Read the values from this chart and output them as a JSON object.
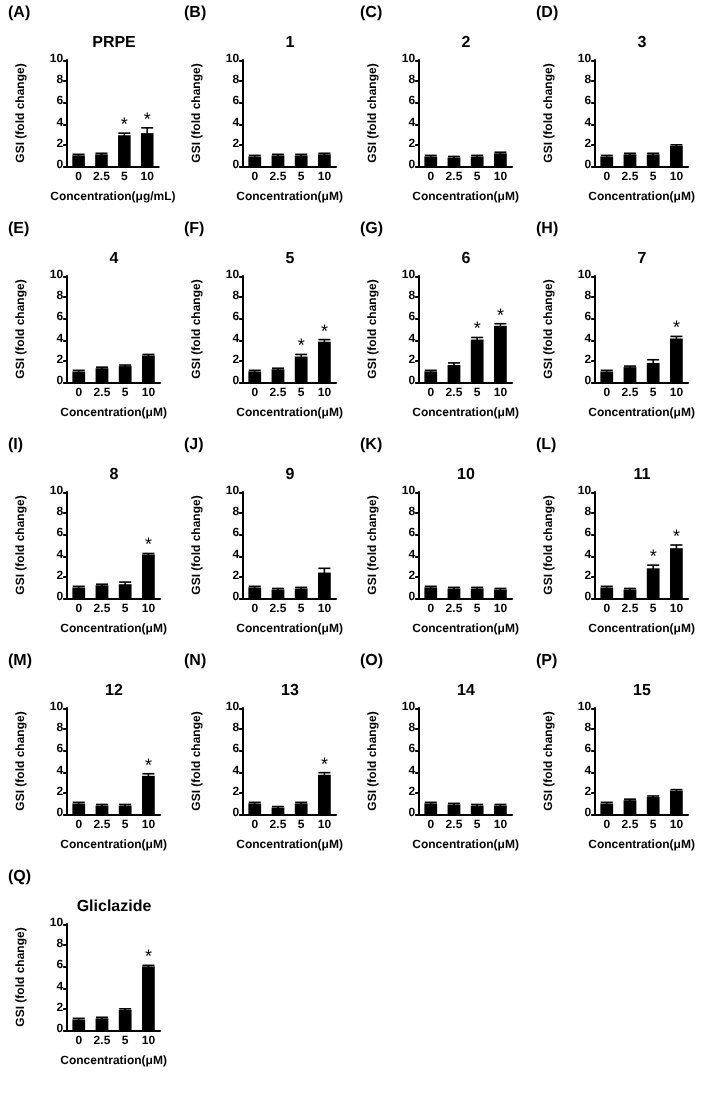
{
  "chart_data": [
    {
      "type": "bar",
      "title": "PRPE",
      "annotations": [
        "(A)",
        {
          "text": "*",
          "x": "5",
          "y": 3.1
        },
        {
          "text": "*",
          "x": "10",
          "y": 3.6
        }
      ],
      "categories": [
        "0",
        "2.5",
        "5",
        "10"
      ],
      "values": [
        1.0,
        1.1,
        2.9,
        3.1
      ],
      "errors": [
        0.1,
        0.1,
        0.2,
        0.5
      ],
      "color": "#000000",
      "xlabel": "Concentration(μg/mL)",
      "ylabel": "GSI (fold change)",
      "ylim": [
        0,
        10
      ],
      "yticks": [
        0,
        2,
        4,
        6,
        8,
        10
      ]
    },
    {
      "type": "bar",
      "title": "1",
      "annotations": [
        "(B)"
      ],
      "categories": [
        "0",
        "2.5",
        "5",
        "10"
      ],
      "values": [
        0.9,
        1.0,
        1.0,
        1.1
      ],
      "errors": [
        0.1,
        0.1,
        0.1,
        0.1
      ],
      "color": "#000000",
      "xlabel": "Concentration(μM)",
      "ylabel": "GSI (fold change)",
      "ylim": [
        0,
        10
      ],
      "yticks": [
        0,
        2,
        4,
        6,
        8,
        10
      ]
    },
    {
      "type": "bar",
      "title": "2",
      "annotations": [
        "(C)"
      ],
      "categories": [
        "0",
        "2.5",
        "5",
        "10"
      ],
      "values": [
        0.9,
        0.8,
        0.9,
        1.2
      ],
      "errors": [
        0.1,
        0.1,
        0.1,
        0.1
      ],
      "color": "#000000",
      "xlabel": "Concentration(μM)",
      "ylabel": "GSI (fold change)",
      "ylim": [
        0,
        10
      ],
      "yticks": [
        0,
        2,
        4,
        6,
        8,
        10
      ]
    },
    {
      "type": "bar",
      "title": "3",
      "annotations": [
        "(D)"
      ],
      "categories": [
        "0",
        "2.5",
        "5",
        "10"
      ],
      "values": [
        0.9,
        1.1,
        1.1,
        1.9
      ],
      "errors": [
        0.1,
        0.1,
        0.1,
        0.1
      ],
      "color": "#000000",
      "xlabel": "Concentration(μM)",
      "ylabel": "GSI (fold change)",
      "ylim": [
        0,
        10
      ],
      "yticks": [
        0,
        2,
        4,
        6,
        8,
        10
      ]
    },
    {
      "type": "bar",
      "title": "4",
      "annotations": [
        "(E)"
      ],
      "categories": [
        "0",
        "2.5",
        "5",
        "10"
      ],
      "values": [
        1.0,
        1.3,
        1.5,
        2.5
      ],
      "errors": [
        0.1,
        0.1,
        0.1,
        0.1
      ],
      "color": "#000000",
      "xlabel": "Concentration(μM)",
      "ylabel": "GSI (fold change)",
      "ylim": [
        0,
        10
      ],
      "yticks": [
        0,
        2,
        4,
        6,
        8,
        10
      ]
    },
    {
      "type": "bar",
      "title": "5",
      "annotations": [
        "(F)",
        {
          "text": "*",
          "x": "5",
          "y": 2.6
        },
        {
          "text": "*",
          "x": "10",
          "y": 4.0
        }
      ],
      "categories": [
        "0",
        "2.5",
        "5",
        "10"
      ],
      "values": [
        1.0,
        1.2,
        2.4,
        3.8
      ],
      "errors": [
        0.1,
        0.1,
        0.2,
        0.2
      ],
      "color": "#000000",
      "xlabel": "Concentration(μM)",
      "ylabel": "GSI (fold change)",
      "ylim": [
        0,
        10
      ],
      "yticks": [
        0,
        2,
        4,
        6,
        8,
        10
      ]
    },
    {
      "type": "bar",
      "title": "6",
      "annotations": [
        "(G)",
        {
          "text": "*",
          "x": "5",
          "y": 4.2
        },
        {
          "text": "*",
          "x": "10",
          "y": 5.5
        }
      ],
      "categories": [
        "0",
        "2.5",
        "5",
        "10"
      ],
      "values": [
        1.0,
        1.6,
        4.0,
        5.3
      ],
      "errors": [
        0.1,
        0.2,
        0.2,
        0.2
      ],
      "color": "#000000",
      "xlabel": "Concentration(μM)",
      "ylabel": "GSI (fold change)",
      "ylim": [
        0,
        10
      ],
      "yticks": [
        0,
        2,
        4,
        6,
        8,
        10
      ]
    },
    {
      "type": "bar",
      "title": "7",
      "annotations": [
        "(H)",
        {
          "text": "*",
          "x": "10",
          "y": 4.3
        }
      ],
      "categories": [
        "0",
        "2.5",
        "5",
        "10"
      ],
      "values": [
        1.0,
        1.4,
        1.8,
        4.1
      ],
      "errors": [
        0.1,
        0.1,
        0.3,
        0.2
      ],
      "color": "#000000",
      "xlabel": "Concentration(μM)",
      "ylabel": "GSI (fold change)",
      "ylim": [
        0,
        10
      ],
      "yticks": [
        0,
        2,
        4,
        6,
        8,
        10
      ]
    },
    {
      "type": "bar",
      "title": "8",
      "annotations": [
        "(I)",
        {
          "text": "*",
          "x": "10",
          "y": 4.2
        }
      ],
      "categories": [
        "0",
        "2.5",
        "5",
        "10"
      ],
      "values": [
        1.0,
        1.2,
        1.3,
        4.1
      ],
      "errors": [
        0.1,
        0.1,
        0.2,
        0.1
      ],
      "color": "#000000",
      "xlabel": "Concentration(μM)",
      "ylabel": "GSI (fold change)",
      "ylim": [
        0,
        10
      ],
      "yticks": [
        0,
        2,
        4,
        6,
        8,
        10
      ]
    },
    {
      "type": "bar",
      "title": "9",
      "annotations": [
        "(J)"
      ],
      "categories": [
        "0",
        "2.5",
        "5",
        "10"
      ],
      "values": [
        1.0,
        0.8,
        0.9,
        2.4
      ],
      "errors": [
        0.1,
        0.1,
        0.1,
        0.4
      ],
      "color": "#000000",
      "xlabel": "Concentration(μM)",
      "ylabel": "GSI (fold change)",
      "ylim": [
        0,
        10
      ],
      "yticks": [
        0,
        2,
        4,
        6,
        8,
        10
      ]
    },
    {
      "type": "bar",
      "title": "10",
      "annotations": [
        "(K)"
      ],
      "categories": [
        "0",
        "2.5",
        "5",
        "10"
      ],
      "values": [
        1.0,
        0.9,
        0.9,
        0.8
      ],
      "errors": [
        0.1,
        0.1,
        0.1,
        0.1
      ],
      "color": "#000000",
      "xlabel": "Concentration(μM)",
      "ylabel": "GSI (fold change)",
      "ylim": [
        0,
        10
      ],
      "yticks": [
        0,
        2,
        4,
        6,
        8,
        10
      ]
    },
    {
      "type": "bar",
      "title": "11",
      "annotations": [
        "(L)",
        {
          "text": "*",
          "x": "5",
          "y": 3.1
        },
        {
          "text": "*",
          "x": "10",
          "y": 5.0
        }
      ],
      "categories": [
        "0",
        "2.5",
        "5",
        "10"
      ],
      "values": [
        1.0,
        0.8,
        2.8,
        4.7
      ],
      "errors": [
        0.1,
        0.1,
        0.3,
        0.3
      ],
      "color": "#000000",
      "xlabel": "Concentration(μM)",
      "ylabel": "GSI (fold change)",
      "ylim": [
        0,
        10
      ],
      "yticks": [
        0,
        2,
        4,
        6,
        8,
        10
      ]
    },
    {
      "type": "bar",
      "title": "12",
      "annotations": [
        "(M)",
        {
          "text": "*",
          "x": "10",
          "y": 3.8
        }
      ],
      "categories": [
        "0",
        "2.5",
        "5",
        "10"
      ],
      "values": [
        1.0,
        0.8,
        0.8,
        3.6
      ],
      "errors": [
        0.1,
        0.1,
        0.1,
        0.2
      ],
      "color": "#000000",
      "xlabel": "Concentration(μM)",
      "ylabel": "GSI (fold change)",
      "ylim": [
        0,
        10
      ],
      "yticks": [
        0,
        2,
        4,
        6,
        8,
        10
      ]
    },
    {
      "type": "bar",
      "title": "13",
      "annotations": [
        "(N)",
        {
          "text": "*",
          "x": "10",
          "y": 3.9
        }
      ],
      "categories": [
        "0",
        "2.5",
        "5",
        "10"
      ],
      "values": [
        1.0,
        0.6,
        1.0,
        3.7
      ],
      "errors": [
        0.1,
        0.1,
        0.1,
        0.2
      ],
      "color": "#000000",
      "xlabel": "Concentration(μM)",
      "ylabel": "GSI (fold change)",
      "ylim": [
        0,
        10
      ],
      "yticks": [
        0,
        2,
        4,
        6,
        8,
        10
      ]
    },
    {
      "type": "bar",
      "title": "14",
      "annotations": [
        "(O)"
      ],
      "categories": [
        "0",
        "2.5",
        "5",
        "10"
      ],
      "values": [
        1.0,
        0.9,
        0.8,
        0.8
      ],
      "errors": [
        0.1,
        0.1,
        0.1,
        0.1
      ],
      "color": "#000000",
      "xlabel": "Concentration(μM)",
      "ylabel": "GSI (fold change)",
      "ylim": [
        0,
        10
      ],
      "yticks": [
        0,
        2,
        4,
        6,
        8,
        10
      ]
    },
    {
      "type": "bar",
      "title": "15",
      "annotations": [
        "(P)"
      ],
      "categories": [
        "0",
        "2.5",
        "5",
        "10"
      ],
      "values": [
        1.0,
        1.3,
        1.6,
        2.2
      ],
      "errors": [
        0.1,
        0.1,
        0.1,
        0.1
      ],
      "color": "#000000",
      "xlabel": "Concentration(μM)",
      "ylabel": "GSI (fold change)",
      "ylim": [
        0,
        10
      ],
      "yticks": [
        0,
        2,
        4,
        6,
        8,
        10
      ]
    },
    {
      "type": "bar",
      "title": "Gliclazide",
      "annotations": [
        "(Q)",
        {
          "text": "*",
          "x": "10",
          "y": 6.1
        }
      ],
      "categories": [
        "0",
        "2.5",
        "5",
        "10"
      ],
      "values": [
        1.0,
        1.1,
        1.9,
        6.0
      ],
      "errors": [
        0.1,
        0.1,
        0.1,
        0.1
      ],
      "color": "#000000",
      "xlabel": "Concentration(μM)",
      "ylabel": "GSI (fold change)",
      "ylim": [
        0,
        10
      ],
      "yticks": [
        0,
        2,
        4,
        6,
        8,
        10
      ]
    }
  ]
}
